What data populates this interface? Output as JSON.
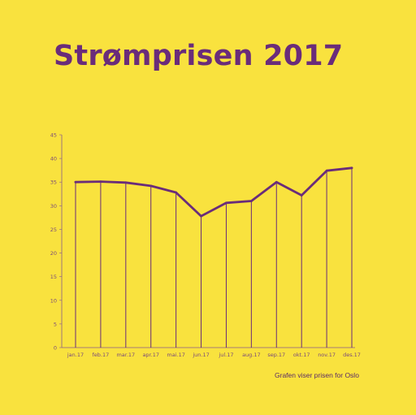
{
  "title": "Strømprisen 2017",
  "footnote": "Grafen viser prisen for Oslo",
  "colors": {
    "background": "#f9e23e",
    "line": "#6a2c7a",
    "axis": "#8a5a8a",
    "tick_text": "#7a4a7a"
  },
  "chart_data": {
    "type": "line",
    "title": "Strømprisen 2017",
    "xlabel": "",
    "ylabel": "",
    "categories": [
      "jan.17",
      "feb.17",
      "mar.17",
      "apr.17",
      "mai.17",
      "jun.17",
      "jul.17",
      "aug.17",
      "sep.17",
      "okt.17",
      "nov.17",
      "des.17"
    ],
    "values": [
      35.0,
      35.1,
      34.9,
      34.2,
      32.8,
      27.8,
      30.6,
      31.0,
      35.0,
      32.2,
      37.4,
      38.0
    ],
    "yticks": [
      0,
      5,
      10,
      15,
      20,
      25,
      30,
      35,
      40,
      45
    ],
    "ylim": [
      0,
      45
    ],
    "grid": false,
    "drop_lines": true,
    "legend": "none"
  }
}
